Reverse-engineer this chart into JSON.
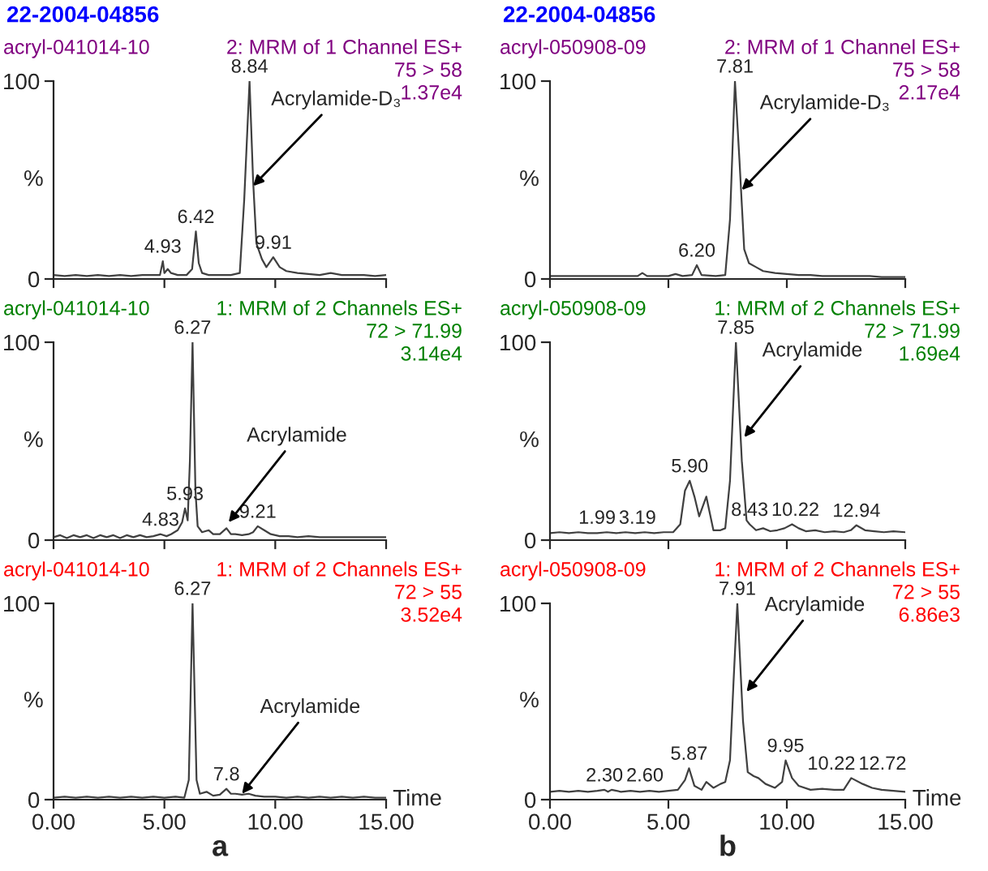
{
  "chart_data": [
    {
      "type": "line",
      "title": "22-2004-04856",
      "subtitle": "acryl-041014-10",
      "annotations": [
        "2: MRM of 1 Channel ES+",
        "75 > 58",
        "1.37e4",
        {
          "text": "4.93",
          "x": 4.93,
          "y": 9
        },
        {
          "text": "6.42",
          "x": 6.42,
          "y": 24
        },
        {
          "text": "8.84",
          "x": 8.84,
          "y": 100
        },
        {
          "text": "9.91",
          "x": 9.91,
          "y": 11
        },
        {
          "text": "Acrylamide-D₃",
          "x": 9.0,
          "y": 47
        }
      ],
      "series": [
        {
          "color": "#404040",
          "x": [
            0,
            0.5,
            1,
            1.5,
            2,
            2.5,
            3,
            3.5,
            4,
            4.5,
            4.8,
            4.93,
            5.0,
            5.15,
            5.3,
            5.6,
            6.0,
            6.25,
            6.42,
            6.55,
            6.7,
            7.0,
            7.5,
            8.0,
            8.4,
            8.6,
            8.84,
            9.0,
            9.15,
            9.4,
            9.6,
            9.91,
            10.2,
            10.5,
            11,
            11.5,
            12,
            12.5,
            13,
            13.5,
            14,
            14.5,
            15
          ],
          "values": [
            2,
            1.5,
            2,
            1.5,
            2,
            1.5,
            2,
            1.5,
            2,
            2,
            2,
            9,
            3,
            5,
            3,
            2,
            2,
            5,
            24,
            8,
            3,
            2,
            2,
            2,
            3,
            40,
            100,
            50,
            18,
            10,
            6,
            11,
            6,
            4,
            3,
            2.5,
            2,
            3,
            2,
            2,
            2,
            1.5,
            2
          ]
        }
      ],
      "xlim": [
        0,
        15
      ],
      "ylim": [
        0,
        100
      ],
      "xticks": [
        0,
        5,
        10,
        15
      ],
      "yticks": [
        0,
        100
      ],
      "ylabel": "%",
      "tick_labels": "y",
      "grid": false
    },
    {
      "type": "line",
      "title": "22-2004-04856",
      "subtitle": "acryl-050908-09",
      "annotations": [
        "2: MRM of 1 Channel ES+",
        "75 > 58",
        "2.17e4",
        {
          "text": "6.20",
          "x": 6.2,
          "y": 7
        },
        {
          "text": "7.81",
          "x": 7.81,
          "y": 100
        },
        {
          "text": "Acrylamide-D₃",
          "x": 8.1,
          "y": 45
        }
      ],
      "series": [
        {
          "color": "#404040",
          "x": [
            0,
            0.5,
            1,
            1.5,
            2,
            2.5,
            3,
            3.5,
            3.7,
            3.9,
            4.1,
            4.5,
            5,
            5.3,
            5.6,
            6.0,
            6.2,
            6.4,
            7.0,
            7.4,
            7.6,
            7.81,
            8.0,
            8.2,
            8.4,
            8.7,
            9,
            9.5,
            10,
            10.5,
            11,
            11.5,
            12,
            12.5,
            13,
            13.5,
            14,
            14.5,
            15
          ],
          "values": [
            1.5,
            1.5,
            1.5,
            1.5,
            1.5,
            1.5,
            1.5,
            1.5,
            1.5,
            3,
            1.5,
            1.5,
            1.5,
            2.5,
            1.5,
            2,
            7,
            2,
            1.5,
            2,
            30,
            100,
            60,
            15,
            8,
            6,
            4,
            3,
            2.5,
            2,
            2,
            1.5,
            1.5,
            1.5,
            1.5,
            1.5,
            1,
            1,
            1
          ]
        }
      ],
      "xlim": [
        0,
        15
      ],
      "ylim": [
        0,
        100
      ],
      "xticks": [
        0,
        5,
        10,
        15
      ],
      "yticks": [
        0,
        100
      ],
      "ylabel": "%",
      "tick_labels": "y",
      "grid": false
    },
    {
      "type": "line",
      "subtitle": "acryl-041014-10",
      "annotations": [
        "1: MRM of 2 Channels ES+",
        "72 > 71.99",
        "3.14e4",
        {
          "text": "4.83",
          "x": 4.83,
          "y": 3
        },
        {
          "text": "5.93",
          "x": 5.93,
          "y": 16
        },
        {
          "text": "6.27",
          "x": 6.27,
          "y": 100
        },
        {
          "text": "9.21",
          "x": 9.21,
          "y": 7
        },
        {
          "text": "Acrylamide",
          "x": 7.9,
          "y": 9
        }
      ],
      "series": [
        {
          "color": "#404040",
          "x": [
            0,
            0.3,
            0.6,
            0.9,
            1.2,
            1.5,
            1.8,
            2.1,
            2.4,
            2.7,
            3.0,
            3.3,
            3.6,
            3.9,
            4.2,
            4.5,
            4.83,
            5.1,
            5.3,
            5.6,
            5.8,
            5.93,
            6.05,
            6.15,
            6.27,
            6.4,
            6.5,
            6.7,
            7.0,
            7.2,
            7.5,
            7.8,
            8.0,
            8.2,
            8.5,
            8.8,
            9.0,
            9.21,
            9.5,
            9.8,
            10.2,
            10.6,
            11.0,
            11.5,
            12.0,
            12.5,
            13.0,
            13.5,
            14.0,
            14.5,
            15
          ],
          "values": [
            1.5,
            2.5,
            1,
            2.5,
            1.5,
            2.5,
            1,
            2.5,
            1.5,
            2.5,
            1,
            2.5,
            1.5,
            2.5,
            1.5,
            2,
            3,
            2,
            3,
            5,
            9,
            16,
            10,
            40,
            100,
            25,
            7,
            4,
            5,
            3,
            3,
            6,
            3,
            3,
            2.5,
            3,
            4,
            7,
            5,
            3,
            2,
            2,
            1.5,
            2,
            1.5,
            1.5,
            1.5,
            1.5,
            1.5,
            1.5,
            1.5
          ]
        }
      ],
      "xlim": [
        0,
        15
      ],
      "ylim": [
        0,
        100
      ],
      "xticks": [
        0,
        5,
        10,
        15
      ],
      "yticks": [
        0,
        100
      ],
      "ylabel": "%",
      "tick_labels": "y",
      "grid": false
    },
    {
      "type": "line",
      "subtitle": "acryl-050908-09",
      "annotations": [
        "1: MRM of 2 Channels ES+",
        "72 > 71.99",
        "1.69e4",
        {
          "text": "1.99",
          "x": 1.99,
          "y": 4
        },
        {
          "text": "3.19",
          "x": 3.19,
          "y": 4
        },
        {
          "text": "5.90",
          "x": 5.9,
          "y": 30
        },
        {
          "text": "7.85",
          "x": 7.85,
          "y": 100
        },
        {
          "text": "8.43",
          "x": 8.43,
          "y": 8
        },
        {
          "text": "10.22",
          "x": 10.22,
          "y": 8
        },
        {
          "text": "12.94",
          "x": 12.94,
          "y": 7.5
        },
        {
          "text": "Acrylamide",
          "x": 8.2,
          "y": 52
        }
      ],
      "series": [
        {
          "color": "#404040",
          "x": [
            0,
            0.4,
            0.8,
            1.2,
            1.6,
            1.99,
            2.4,
            2.8,
            3.19,
            3.6,
            4.0,
            4.4,
            4.8,
            5.2,
            5.5,
            5.7,
            5.9,
            6.1,
            6.3,
            6.6,
            6.9,
            7.2,
            7.4,
            7.6,
            7.85,
            8.1,
            8.3,
            8.43,
            8.7,
            9.0,
            9.3,
            9.6,
            9.9,
            10.22,
            10.5,
            10.8,
            11.2,
            11.6,
            12.0,
            12.4,
            12.7,
            12.94,
            13.3,
            13.7,
            14.1,
            14.5,
            15
          ],
          "values": [
            3.5,
            4,
            3.5,
            4,
            3.5,
            3.5,
            4,
            3.5,
            4,
            3.5,
            4,
            3.5,
            4,
            4,
            8,
            25,
            30,
            22,
            12,
            22,
            5,
            5,
            6,
            30,
            100,
            40,
            10,
            8,
            5,
            6,
            4.5,
            5,
            6,
            8,
            6,
            4.5,
            5,
            4,
            4.5,
            4,
            5,
            7.5,
            5,
            4.5,
            4,
            4.5,
            4
          ]
        }
      ],
      "xlim": [
        0,
        15
      ],
      "ylim": [
        0,
        100
      ],
      "xticks": [
        0,
        5,
        10,
        15
      ],
      "yticks": [
        0,
        100
      ],
      "ylabel": "%",
      "tick_labels": "y",
      "grid": false
    },
    {
      "type": "line",
      "subtitle": "acryl-041014-10",
      "xlabel": "Time",
      "annotations": [
        "1: MRM of 2 Channels ES+",
        "72 > 55",
        "3.52e4",
        "a",
        {
          "text": "6.27",
          "x": 6.27,
          "y": 100
        },
        {
          "text": "7.8",
          "x": 7.8,
          "y": 5.5
        },
        {
          "text": "Acrylamide",
          "x": 8.5,
          "y": 3
        }
      ],
      "series": [
        {
          "color": "#404040",
          "x": [
            0,
            0.5,
            1,
            1.5,
            2,
            2.5,
            3,
            3.5,
            4,
            4.5,
            5,
            5.5,
            5.9,
            6.1,
            6.27,
            6.45,
            6.6,
            6.9,
            7.2,
            7.5,
            7.8,
            8.0,
            8.2,
            8.5,
            8.8,
            9.1,
            9.5,
            10,
            10.5,
            11,
            11.5,
            12,
            12.5,
            13,
            13.5,
            14,
            14.5,
            15
          ],
          "values": [
            1,
            1.5,
            1,
            1.5,
            1,
            1.5,
            1,
            1.5,
            1,
            1.5,
            1,
            1.5,
            1,
            10,
            100,
            10,
            3,
            4,
            2,
            2.5,
            5.5,
            3,
            3,
            2.5,
            3,
            2,
            1.5,
            1.5,
            1,
            1.5,
            1,
            1.5,
            1,
            1.5,
            1,
            1.5,
            1,
            1
          ]
        }
      ],
      "xlim": [
        0,
        15
      ],
      "ylim": [
        0,
        100
      ],
      "xticks": [
        {
          "value": 0,
          "label": "0.00"
        },
        {
          "value": 5,
          "label": "5.00"
        },
        {
          "value": 10,
          "label": "10.00"
        },
        {
          "value": 15,
          "label": "15.00"
        }
      ],
      "yticks": [
        0,
        100
      ],
      "ylabel": "%",
      "grid": false
    },
    {
      "type": "line",
      "subtitle": "acryl-050908-09",
      "xlabel": "Time",
      "annotations": [
        "1: MRM of 2 Channels ES+",
        "72 > 55",
        "6.86e3",
        "b",
        {
          "text": "2.30",
          "x": 2.3,
          "y": 5
        },
        {
          "text": "2.60",
          "x": 2.6,
          "y": 5
        },
        {
          "text": "5.87",
          "x": 5.87,
          "y": 16
        },
        {
          "text": "7.91",
          "x": 7.91,
          "y": 100
        },
        {
          "text": "9.95",
          "x": 9.95,
          "y": 20
        },
        {
          "text": "10.22",
          "x": 10.22,
          "y": 11
        },
        {
          "text": "12.72",
          "x": 12.72,
          "y": 11
        },
        {
          "text": "Acrylamide",
          "x": 8.3,
          "y": 55
        }
      ],
      "series": [
        {
          "color": "#404040",
          "x": [
            0,
            0.4,
            0.8,
            1.2,
            1.6,
            2.0,
            2.3,
            2.45,
            2.6,
            3.0,
            3.4,
            3.8,
            4.2,
            4.6,
            5.0,
            5.4,
            5.7,
            5.87,
            6.1,
            6.4,
            6.6,
            6.9,
            7.2,
            7.4,
            7.6,
            7.75,
            7.91,
            8.15,
            8.35,
            8.6,
            8.8,
            9.1,
            9.5,
            9.8,
            9.95,
            10.22,
            10.5,
            11.0,
            11.5,
            12.0,
            12.4,
            12.72,
            13.2,
            13.6,
            14.0,
            14.5,
            15
          ],
          "values": [
            4,
            4.5,
            4,
            4.5,
            4,
            4.5,
            5,
            4,
            5,
            4,
            4.5,
            4,
            4.5,
            4,
            4.5,
            5,
            10,
            16,
            7,
            5,
            9,
            6,
            8,
            9,
            20,
            60,
            100,
            40,
            14,
            12,
            11,
            8,
            6,
            9,
            20,
            11,
            7,
            5,
            5.5,
            5,
            5,
            11,
            8,
            6,
            5,
            4.5,
            4
          ]
        }
      ],
      "xlim": [
        0,
        15
      ],
      "ylim": [
        0,
        100
      ],
      "xticks": [
        {
          "value": 0,
          "label": "0.00"
        },
        {
          "value": 5,
          "label": "5.00"
        },
        {
          "value": 10,
          "label": "10.00"
        },
        {
          "value": 15,
          "label": "15.00"
        }
      ],
      "yticks": [
        0,
        100
      ],
      "ylabel": "%",
      "grid": false
    }
  ]
}
